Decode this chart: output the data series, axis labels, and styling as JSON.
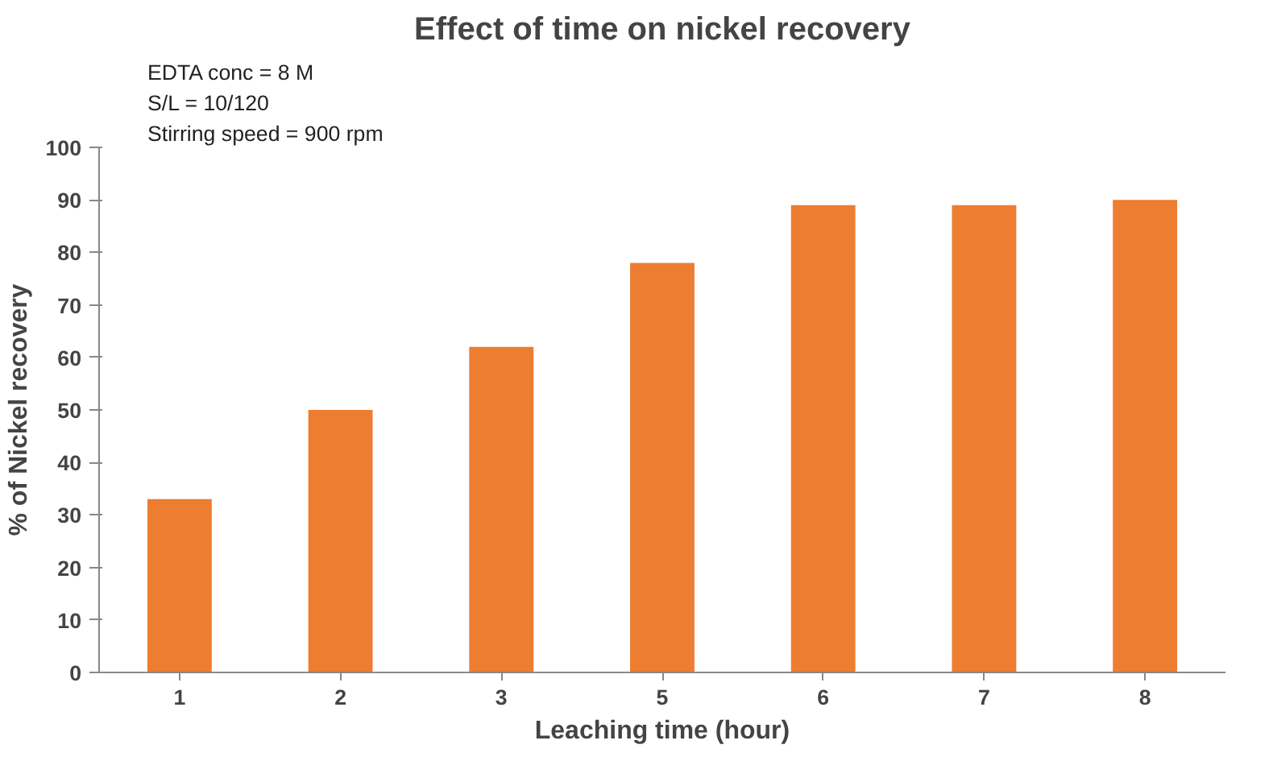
{
  "chart_data": {
    "type": "bar",
    "title": "Effect of time on nickel recovery",
    "xlabel": "Leaching time (hour)",
    "ylabel": "% of Nickel recovery",
    "categories": [
      "1",
      "2",
      "3",
      "5",
      "6",
      "7",
      "8"
    ],
    "values": [
      33,
      50,
      62,
      78,
      89,
      89,
      90
    ],
    "color": "#ed7d31",
    "ylim": [
      0,
      100
    ],
    "yticks": [
      0,
      10,
      20,
      30,
      40,
      50,
      60,
      70,
      80,
      90,
      100
    ],
    "grid": false,
    "annotations": [
      "EDTA  conc = 8 M",
      "S/L  = 10/120",
      "Stirring speed = 900 rpm"
    ]
  }
}
